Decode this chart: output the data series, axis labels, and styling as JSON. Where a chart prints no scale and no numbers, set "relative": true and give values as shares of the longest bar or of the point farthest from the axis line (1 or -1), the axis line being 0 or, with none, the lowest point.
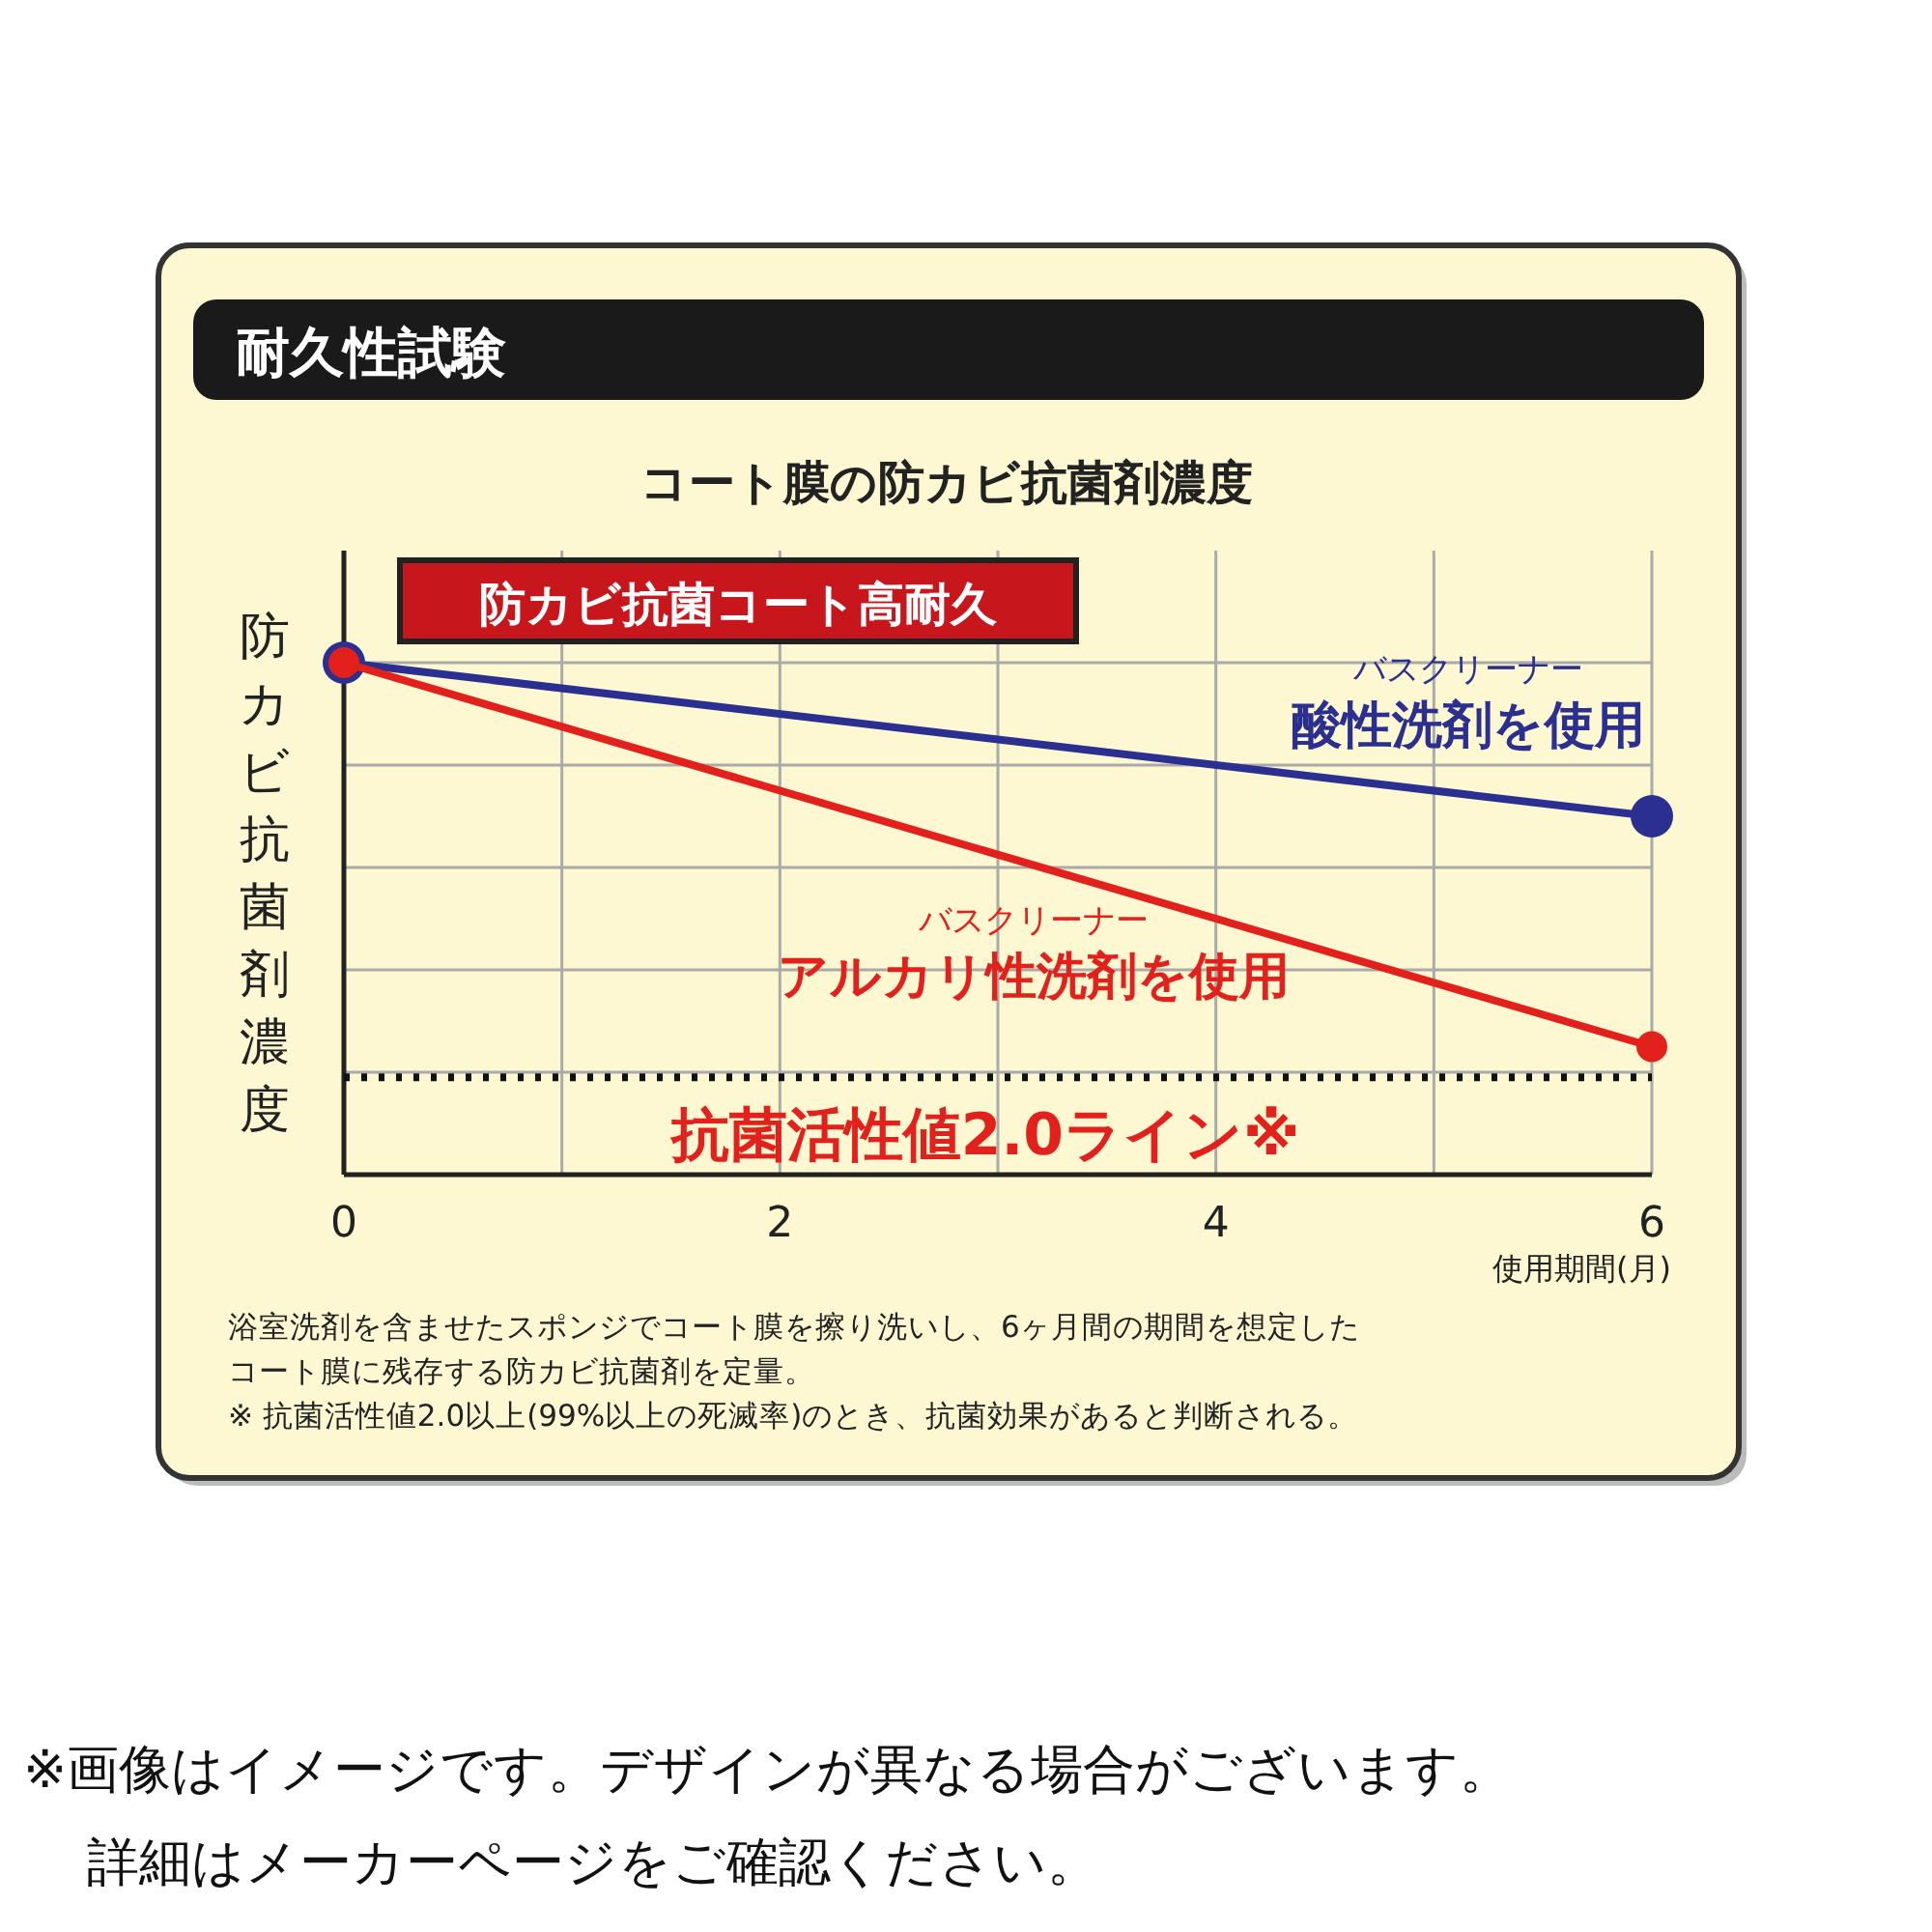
{
  "chart_data": {
    "type": "line",
    "title": "耐久性試験",
    "subtitle": "コート膜の防カビ抗菌剤濃度",
    "ylabel": "防カビ抗菌剤濃度",
    "xlabel": "使用期間(月)",
    "relative": true,
    "x": [
      0,
      6
    ],
    "xlim": [
      0,
      6
    ],
    "xticks": [
      0,
      {
        "value": 1,
        "label": null
      },
      2,
      {
        "value": 3,
        "label": null
      },
      4,
      {
        "value": 5,
        "label": null
      },
      6
    ],
    "series": [
      {
        "name": "バスクリーナー酸性洗剤を使用",
        "color": "#2b2f8f",
        "values": [
          1,
          0.7
        ]
      },
      {
        "name": "バスクリーナーアルカリ性洗剤を使用",
        "color": "#e3211c",
        "values": [
          1,
          0.25
        ]
      }
    ],
    "ref_lines": [
      {
        "axis": "y",
        "value": 0.19,
        "label": "抗菌活性値2.0ライン※",
        "color": "#111111",
        "line_style": "dotted"
      }
    ],
    "annotations": [
      "防カビ抗菌コート高耐久",
      "浴室洗剤を含ませたスポンジでコート膜を擦り洗いし、6ヶ月間の期間を想定した",
      "コート膜に残存する防カビ抗菌剤を定量。",
      "※ 抗菌活性値2.0以上(99%以上の死滅率)のとき、抗菌効果があると判断される。",
      "※画像はイメージです。デザインが異なる場合がございます。",
      "詳細はメーカーページをご確認ください。"
    ],
    "grid": true,
    "marker": "circle",
    "line_style": "solid"
  }
}
